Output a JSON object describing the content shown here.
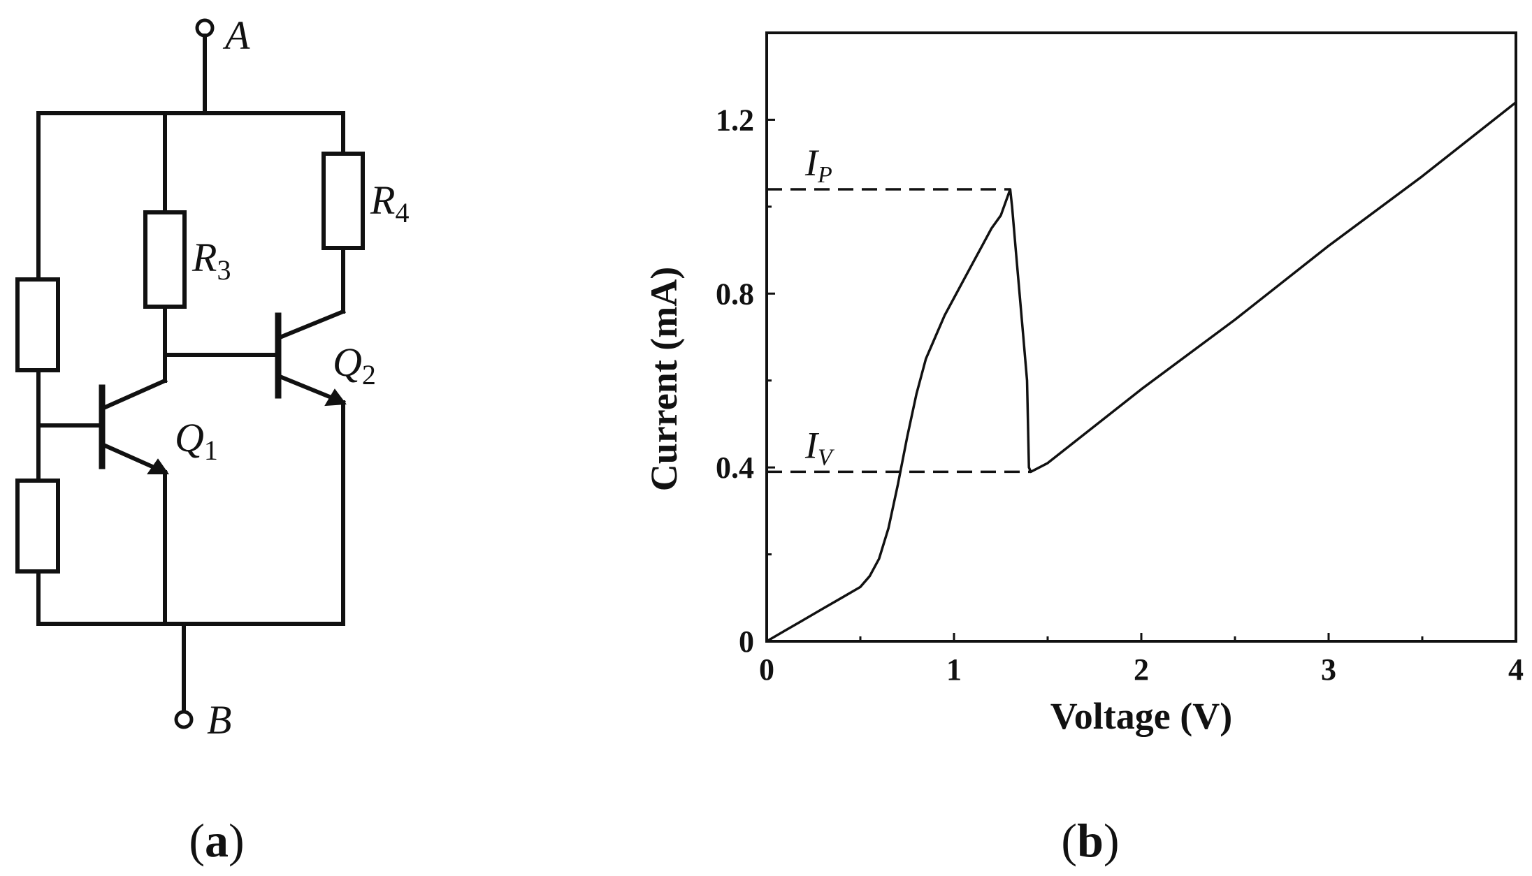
{
  "panels": {
    "a": {
      "letter": "a",
      "open": "(",
      "close": ")"
    },
    "b": {
      "letter": "b",
      "open": "(",
      "close": ")"
    }
  },
  "circuit": {
    "terminal_top": "A",
    "terminal_bottom": "B",
    "r3": {
      "main": "R",
      "sub": "3"
    },
    "r4": {
      "main": "R",
      "sub": "4"
    },
    "q1": {
      "main": "Q",
      "sub": "1"
    },
    "q2": {
      "main": "Q",
      "sub": "2"
    }
  },
  "chart_data": {
    "type": "line",
    "xlabel": "Voltage (V)",
    "ylabel": "Current (mA)",
    "xlim": [
      0,
      4
    ],
    "ylim": [
      0,
      1.4
    ],
    "xticks": [
      0,
      1,
      2,
      3,
      4
    ],
    "xtick_labels": [
      "0",
      "1",
      "2",
      "3",
      "4"
    ],
    "yticks": [
      0,
      0.4,
      0.8,
      1.2
    ],
    "ytick_labels": [
      "0",
      "0.4",
      "0.8",
      "1.2"
    ],
    "grid": false,
    "series": [
      {
        "x": [
          0,
          0.1,
          0.2,
          0.3,
          0.4,
          0.5,
          0.55,
          0.6,
          0.65,
          0.7,
          0.75,
          0.8,
          0.85,
          0.9,
          0.95,
          1.0,
          1.05,
          1.1,
          1.15,
          1.2,
          1.25,
          1.3,
          1.31,
          1.33,
          1.35,
          1.37,
          1.39,
          1.4,
          1.41,
          1.5,
          2.0,
          2.5,
          3.0,
          3.5,
          4.0
        ],
        "y": [
          0,
          0.025,
          0.05,
          0.075,
          0.1,
          0.125,
          0.15,
          0.19,
          0.26,
          0.36,
          0.47,
          0.57,
          0.65,
          0.7,
          0.75,
          0.79,
          0.83,
          0.87,
          0.91,
          0.95,
          0.98,
          1.04,
          1.0,
          0.9,
          0.8,
          0.7,
          0.6,
          0.4,
          0.39,
          0.41,
          0.58,
          0.74,
          0.91,
          1.07,
          1.24
        ]
      }
    ],
    "annotations": [
      {
        "main": "I",
        "sub": "P",
        "x": 1.3,
        "y": 1.04
      },
      {
        "main": "I",
        "sub": "V",
        "x": 1.41,
        "y": 0.39
      }
    ]
  }
}
